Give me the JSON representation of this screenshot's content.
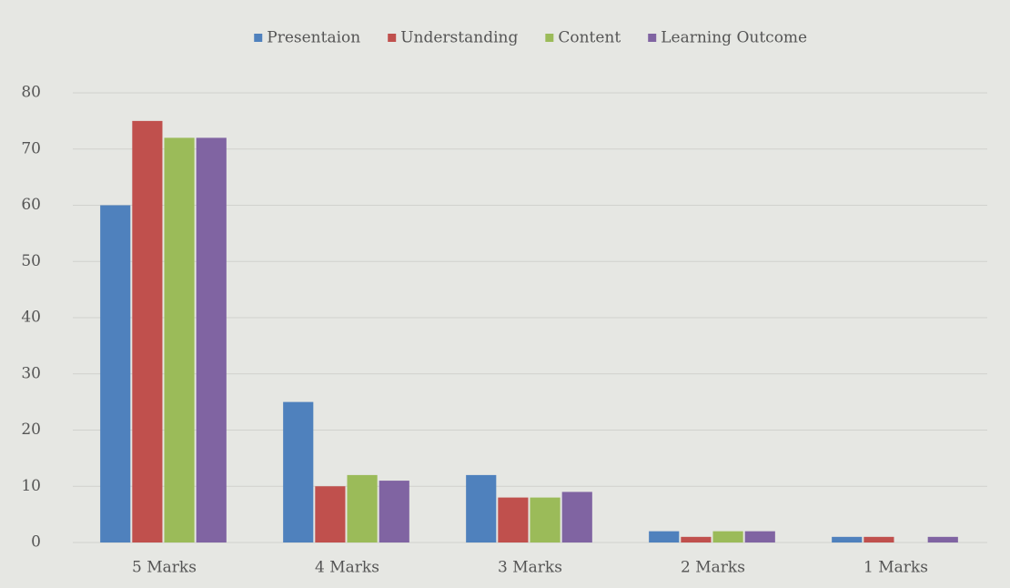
{
  "chart_data": {
    "type": "bar",
    "categories": [
      "5 Marks",
      "4 Marks",
      "3 Marks",
      "2 Marks",
      "1 Marks"
    ],
    "series": [
      {
        "name": "Presentaion",
        "color": "#4f81bd",
        "values": [
          60,
          25,
          12,
          2,
          1
        ]
      },
      {
        "name": "Understanding",
        "color": "#c0504d",
        "values": [
          75,
          10,
          8,
          1,
          1
        ]
      },
      {
        "name": "Content",
        "color": "#9bbb59",
        "values": [
          72,
          12,
          8,
          2,
          0
        ]
      },
      {
        "name": "Learning Outcome",
        "color": "#8064a2",
        "values": [
          72,
          11,
          9,
          2,
          1
        ]
      }
    ],
    "ylim": [
      0,
      80
    ],
    "yticks": [
      0,
      10,
      20,
      30,
      40,
      50,
      60,
      70,
      80
    ],
    "grid": true,
    "legend": "top"
  }
}
